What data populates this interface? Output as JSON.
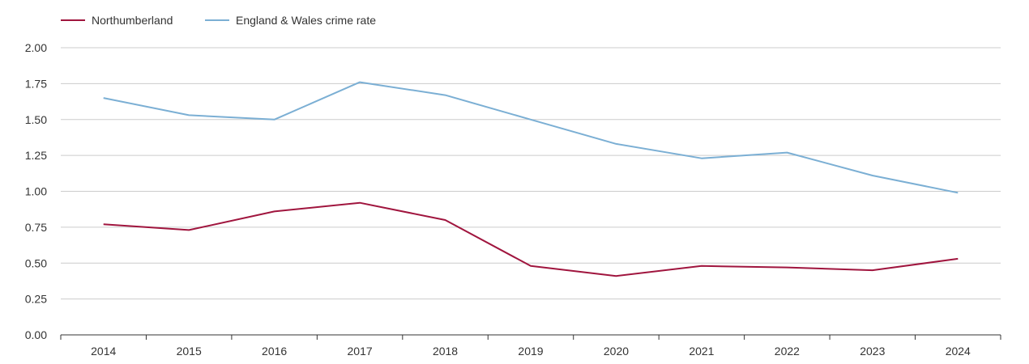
{
  "chart_data": {
    "type": "line",
    "title": "",
    "xlabel": "",
    "ylabel": "",
    "categories": [
      "2014",
      "2015",
      "2016",
      "2017",
      "2018",
      "2019",
      "2020",
      "2021",
      "2022",
      "2023",
      "2024"
    ],
    "ylim": [
      0,
      2
    ],
    "yticks": [
      "0.00",
      "0.25",
      "0.50",
      "0.75",
      "1.00",
      "1.25",
      "1.50",
      "1.75",
      "2.00"
    ],
    "grid": true,
    "legend_position": "top-left",
    "series": [
      {
        "name": "Northumberland",
        "color": "#a0153e",
        "values": [
          0.77,
          0.73,
          0.86,
          0.92,
          0.8,
          0.48,
          0.41,
          0.48,
          0.47,
          0.45,
          0.53
        ]
      },
      {
        "name": "England & Wales crime rate",
        "color": "#7bafd4",
        "values": [
          1.65,
          1.53,
          1.5,
          1.76,
          1.67,
          1.5,
          1.33,
          1.23,
          1.27,
          1.11,
          0.99
        ]
      }
    ]
  }
}
